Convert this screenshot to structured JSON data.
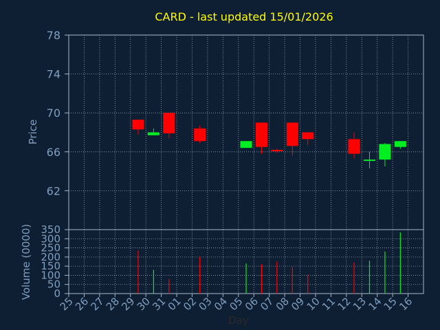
{
  "chart_data": [
    {
      "type": "candlestick",
      "title": "CARD - last updated 15/01/2026",
      "ylabel": "Price",
      "ylim": [
        58,
        78
      ],
      "yticks": [
        "78",
        "74",
        "70",
        "66",
        "62"
      ],
      "grid": true,
      "categories": [
        "25",
        "26",
        "27",
        "28",
        "29",
        "30",
        "31",
        "01",
        "02",
        "03",
        "04",
        "05",
        "06",
        "07",
        "08",
        "09",
        "10",
        "11",
        "12",
        "13",
        "14",
        "15",
        "16"
      ],
      "candles": [
        {
          "day": "29",
          "open": 69.3,
          "high": 69.3,
          "low": 67.8,
          "close": 68.3
        },
        {
          "day": "30",
          "open": 67.7,
          "high": 68.4,
          "low": 67.7,
          "close": 68.0
        },
        {
          "day": "31",
          "open": 70.0,
          "high": 70.0,
          "low": 67.4,
          "close": 67.9
        },
        {
          "day": "02",
          "open": 68.4,
          "high": 68.7,
          "low": 66.9,
          "close": 67.1
        },
        {
          "day": "05",
          "open": 66.4,
          "high": 67.1,
          "low": 66.4,
          "close": 67.1
        },
        {
          "day": "06",
          "open": 69.0,
          "high": 69.0,
          "low": 65.8,
          "close": 66.5
        },
        {
          "day": "07",
          "open": 66.2,
          "high": 66.3,
          "low": 65.9,
          "close": 66.1
        },
        {
          "day": "08",
          "open": 69.0,
          "high": 69.0,
          "low": 65.6,
          "close": 66.6
        },
        {
          "day": "09",
          "open": 68.0,
          "high": 68.0,
          "low": 66.7,
          "close": 67.3
        },
        {
          "day": "12",
          "open": 67.3,
          "high": 68.0,
          "low": 65.3,
          "close": 65.8
        },
        {
          "day": "13",
          "open": 65.2,
          "high": 66.0,
          "low": 64.3,
          "close": 65.2
        },
        {
          "day": "14",
          "open": 65.2,
          "high": 66.9,
          "low": 64.5,
          "close": 66.8
        },
        {
          "day": "15",
          "open": 66.5,
          "high": 67.1,
          "low": 66.3,
          "close": 67.1
        }
      ]
    },
    {
      "type": "bar",
      "ylabel": "Volume (0000)",
      "xlabel": "Day",
      "ylim": [
        0,
        350
      ],
      "yticks": [
        "350",
        "300",
        "250",
        "200",
        "150",
        "100",
        "50",
        "0"
      ],
      "grid": true,
      "categories": [
        "25",
        "26",
        "27",
        "28",
        "29",
        "30",
        "31",
        "01",
        "02",
        "03",
        "04",
        "05",
        "06",
        "07",
        "08",
        "09",
        "10",
        "11",
        "12",
        "13",
        "14",
        "15",
        "16"
      ],
      "bars": [
        {
          "day": "29",
          "value": 235,
          "direction": "down"
        },
        {
          "day": "30",
          "value": 130,
          "direction": "up"
        },
        {
          "day": "31",
          "value": 80,
          "direction": "down"
        },
        {
          "day": "02",
          "value": 200,
          "direction": "down"
        },
        {
          "day": "05",
          "value": 165,
          "direction": "up"
        },
        {
          "day": "06",
          "value": 160,
          "direction": "down"
        },
        {
          "day": "07",
          "value": 175,
          "direction": "down"
        },
        {
          "day": "08",
          "value": 145,
          "direction": "down"
        },
        {
          "day": "09",
          "value": 105,
          "direction": "down"
        },
        {
          "day": "12",
          "value": 170,
          "direction": "down"
        },
        {
          "day": "13",
          "value": 180,
          "direction": "up"
        },
        {
          "day": "14",
          "value": 230,
          "direction": "up"
        },
        {
          "day": "15",
          "value": 335,
          "direction": "up"
        }
      ]
    }
  ],
  "colors": {
    "background": "#0f1f33",
    "title": "#ffff00",
    "axis_text": "#7f9fbf",
    "frame": "#a8b8c8",
    "grid": "#c8d4e0",
    "up": "#00ee22",
    "down": "#ff0000"
  }
}
